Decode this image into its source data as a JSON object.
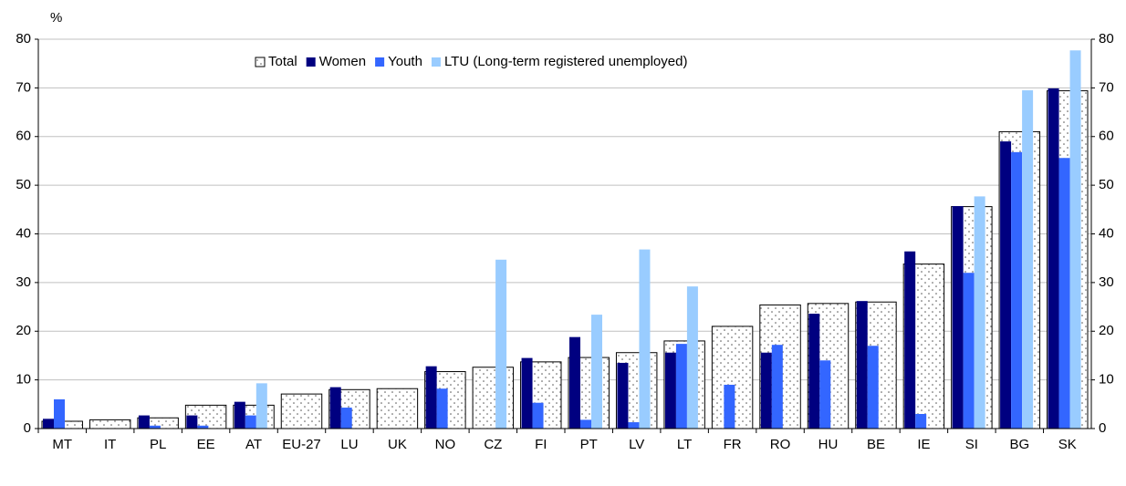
{
  "chart_data": {
    "type": "bar",
    "y_label": "%",
    "categories": [
      "MT",
      "IT",
      "PL",
      "EE",
      "AT",
      "EU-27",
      "LU",
      "UK",
      "NO",
      "CZ",
      "FI",
      "PT",
      "LV",
      "LT",
      "FR",
      "RO",
      "HU",
      "BE",
      "IE",
      "SI",
      "BG",
      "SK"
    ],
    "series": [
      {
        "name": "Total",
        "color": "#ffffff",
        "values": [
          1.5,
          1.8,
          2.2,
          4.8,
          4.8,
          7.1,
          8,
          8.2,
          11.7,
          12.6,
          13.7,
          14.6,
          15.6,
          18,
          21,
          25.4,
          25.7,
          26,
          33.8,
          45.6,
          61,
          69.4
        ]
      },
      {
        "name": "Women",
        "color": "#000080",
        "values": [
          2,
          null,
          2.7,
          2.7,
          5.5,
          null,
          8.5,
          null,
          12.8,
          null,
          14.5,
          18.8,
          13.5,
          15.6,
          null,
          15.6,
          23.6,
          26.2,
          36.4,
          45.7,
          59,
          69.9
        ]
      },
      {
        "name": "Youth",
        "color": "#3366ff",
        "values": [
          6,
          null,
          0.6,
          0.6,
          2.7,
          null,
          4.3,
          null,
          8.2,
          null,
          5.3,
          1.8,
          1.3,
          17.4,
          9,
          17.2,
          14,
          17,
          3,
          32,
          56.8,
          55.6
        ]
      },
      {
        "name": "LTU (Long-term registered unemployed)",
        "color": "#99ccff",
        "values": [
          null,
          null,
          null,
          null,
          9.3,
          null,
          null,
          null,
          null,
          34.7,
          null,
          23.4,
          36.8,
          29.2,
          null,
          null,
          null,
          null,
          null,
          47.7,
          69.5,
          77.7
        ]
      }
    ],
    "ylim": [
      0,
      80
    ],
    "yticks": [
      0,
      10,
      20,
      30,
      40,
      50,
      60,
      70,
      80
    ],
    "y2lim": [
      0,
      80
    ],
    "y2ticks": [
      0,
      10,
      20,
      30,
      40,
      50,
      60,
      70,
      80
    ],
    "grid": true,
    "legend": "top"
  }
}
